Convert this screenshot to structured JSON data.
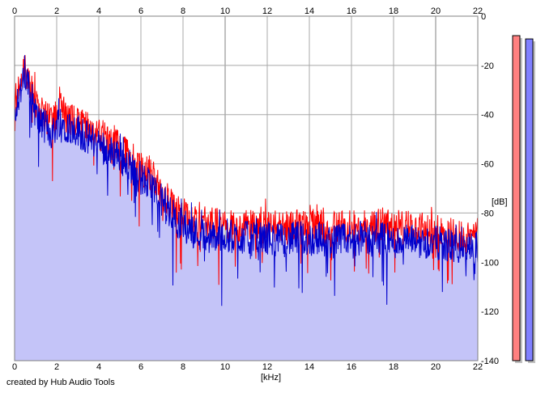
{
  "chart_data": {
    "type": "line",
    "xlabel": "[kHz]",
    "ylabel": "[dB]",
    "xlim": [
      0,
      22
    ],
    "ylim": [
      -140,
      0
    ],
    "x_ticks": [
      0,
      2,
      4,
      6,
      8,
      10,
      12,
      14,
      16,
      18,
      20,
      22
    ],
    "y_ticks": [
      0,
      -20,
      -40,
      -60,
      -80,
      -100,
      -120,
      -140
    ],
    "grid": true,
    "series": [
      {
        "color": "#ff0000",
        "x": [
          0.05,
          0.3,
          0.5,
          0.7,
          0.9,
          1.1,
          1.3,
          1.5,
          1.8,
          2.1,
          2.4,
          2.7,
          3.0,
          3.3,
          3.6,
          3.9,
          4.2,
          4.5,
          4.8,
          5.1,
          5.4,
          5.7,
          6.0,
          6.3,
          6.6,
          6.9,
          7.2,
          7.5,
          7.8,
          8.2,
          8.6,
          9.0,
          9.5,
          10,
          10.5,
          11,
          11.5,
          12,
          12.5,
          13,
          13.5,
          14,
          14.5,
          15,
          15.5,
          16,
          16.5,
          17,
          17.5,
          18,
          18.5,
          19,
          19.5,
          20,
          20.5,
          21,
          21.5,
          22
        ],
        "y": [
          -33,
          -28,
          -22,
          -27,
          -32,
          -38,
          -40,
          -41,
          -44,
          -37,
          -40,
          -43,
          -42,
          -45,
          -46,
          -47,
          -49,
          -52,
          -51,
          -55,
          -56,
          -59,
          -62,
          -64,
          -66,
          -70,
          -74,
          -77,
          -80,
          -81,
          -84,
          -84,
          -85,
          -84,
          -86,
          -85,
          -86,
          -85,
          -86,
          -86,
          -85,
          -86,
          -84,
          -87,
          -85,
          -86,
          -85,
          -86,
          -84,
          -87,
          -86,
          -86,
          -87,
          -87,
          -88,
          -89,
          -90,
          -88
        ]
      },
      {
        "color": "#0000cc",
        "x": [
          0.05,
          0.3,
          0.5,
          0.7,
          0.9,
          1.1,
          1.3,
          1.5,
          1.8,
          2.1,
          2.4,
          2.7,
          3.0,
          3.3,
          3.6,
          3.9,
          4.2,
          4.5,
          4.8,
          5.1,
          5.4,
          5.7,
          6.0,
          6.3,
          6.6,
          6.9,
          7.2,
          7.5,
          7.8,
          8.2,
          8.6,
          9.0,
          9.5,
          10,
          10.5,
          11,
          11.5,
          12,
          12.5,
          13,
          13.5,
          14,
          14.5,
          15,
          15.5,
          16,
          16.5,
          17,
          17.5,
          18,
          18.5,
          19,
          19.5,
          20,
          20.5,
          21,
          21.5,
          22
        ],
        "y": [
          -36,
          -30,
          -25,
          -30,
          -36,
          -42,
          -44,
          -45,
          -48,
          -42,
          -44,
          -46,
          -46,
          -49,
          -50,
          -51,
          -53,
          -56,
          -55,
          -58,
          -60,
          -63,
          -66,
          -68,
          -70,
          -74,
          -78,
          -81,
          -84,
          -86,
          -88,
          -89,
          -90,
          -89,
          -90,
          -90,
          -91,
          -90,
          -91,
          -91,
          -90,
          -91,
          -90,
          -92,
          -91,
          -91,
          -90,
          -91,
          -90,
          -92,
          -91,
          -92,
          -92,
          -92,
          -93,
          -94,
          -95,
          -94
        ]
      }
    ],
    "meters": [
      {
        "color": "#ff8080",
        "level": 0.99
      },
      {
        "color": "#8080ff",
        "level": 0.98
      }
    ]
  },
  "credit": "created by Hub Audio Tools"
}
